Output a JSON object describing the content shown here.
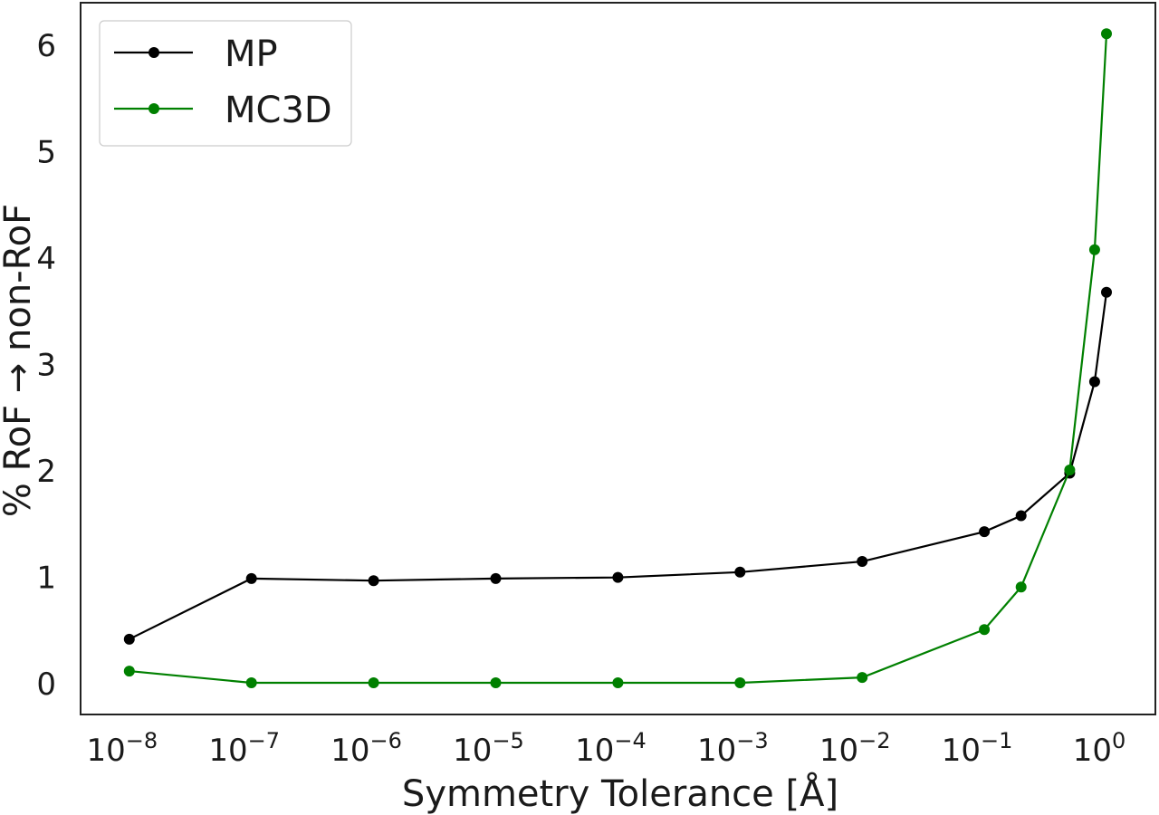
{
  "chart_data": {
    "type": "line",
    "title": "",
    "xlabel": "Symmetry Tolerance [Å]",
    "ylabel": "% RoF → non-RoF",
    "xscale": "log",
    "xlim": [
      6e-09,
      1.6
    ],
    "ylim": [
      -0.3,
      6.45
    ],
    "grid": false,
    "legend_position": "top-left",
    "x_ticks": [
      {
        "value": 1e-08,
        "base": "10",
        "exp": "−8"
      },
      {
        "value": 1e-07,
        "base": "10",
        "exp": "−7"
      },
      {
        "value": 1e-06,
        "base": "10",
        "exp": "−6"
      },
      {
        "value": 1e-05,
        "base": "10",
        "exp": "−5"
      },
      {
        "value": 0.0001,
        "base": "10",
        "exp": "−4"
      },
      {
        "value": 0.001,
        "base": "10",
        "exp": "−3"
      },
      {
        "value": 0.01,
        "base": "10",
        "exp": "−2"
      },
      {
        "value": 0.1,
        "base": "10",
        "exp": "−1"
      },
      {
        "value": 1,
        "base": "10",
        "exp": "0"
      }
    ],
    "y_ticks": [
      {
        "value": 0,
        "label": "0"
      },
      {
        "value": 1,
        "label": "1"
      },
      {
        "value": 2,
        "label": "2"
      },
      {
        "value": 3,
        "label": "3"
      },
      {
        "value": 4,
        "label": "4"
      },
      {
        "value": 5,
        "label": "5"
      },
      {
        "value": 6,
        "label": "6"
      }
    ],
    "x": [
      1e-08,
      1e-07,
      1e-06,
      1e-05,
      0.0001,
      0.001,
      0.01,
      0.1,
      0.2,
      0.5,
      0.8,
      1.0
    ],
    "series": [
      {
        "name": "MP",
        "color": "#000000",
        "values": [
          0.41,
          0.98,
          0.96,
          0.98,
          0.99,
          1.04,
          1.14,
          1.42,
          1.57,
          1.97,
          2.83,
          3.67
        ]
      },
      {
        "name": "MC3D",
        "color": "#008000",
        "values": [
          0.11,
          0.0,
          0.0,
          0.0,
          0.0,
          0.0,
          0.05,
          0.5,
          0.9,
          2.0,
          4.07,
          6.1
        ]
      }
    ]
  }
}
